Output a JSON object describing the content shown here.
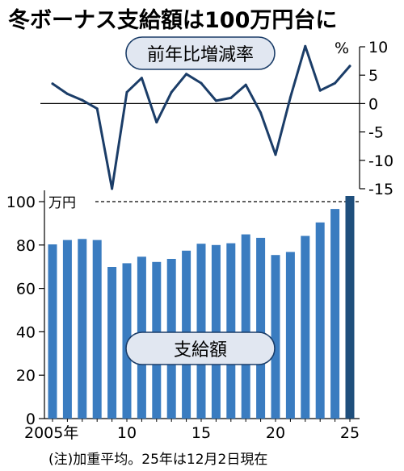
{
  "title": "冬ボーナス支給額は100万円台に",
  "note": "(注)加重平均。25年は12月2日現在",
  "colors": {
    "bar": "#3a7cc0",
    "bar_highlight": "#1f4f7c",
    "line": "#1b3d68",
    "pill": "#e1e7f1",
    "pill_border": "#1b3d68",
    "text": "#000000"
  },
  "chart_data": [
    {
      "type": "line",
      "label": "前年比増減率",
      "unit": "%",
      "x": [
        2005,
        2006,
        2007,
        2008,
        2009,
        2010,
        2011,
        2012,
        2013,
        2014,
        2015,
        2016,
        2017,
        2018,
        2019,
        2020,
        2021,
        2022,
        2023,
        2024,
        2025
      ],
      "values": [
        3.5,
        1.7,
        0.6,
        -0.9,
        -15.0,
        2.0,
        4.5,
        -3.3,
        2.0,
        5.2,
        3.6,
        0.5,
        1.0,
        3.3,
        -1.6,
        -9.0,
        1.1,
        10.1,
        2.3,
        3.6,
        6.6
      ],
      "ylim": [
        -15,
        10
      ],
      "yticks": [
        10,
        5,
        0,
        -5,
        -10,
        -15
      ],
      "zero_line": true
    },
    {
      "type": "bar",
      "label": "支給額",
      "unit": "万円",
      "x": [
        2005,
        2006,
        2007,
        2008,
        2009,
        2010,
        2011,
        2012,
        2013,
        2014,
        2015,
        2016,
        2017,
        2018,
        2019,
        2020,
        2021,
        2022,
        2023,
        2024,
        2025
      ],
      "values": [
        80.3,
        82.3,
        82.8,
        82.3,
        69.9,
        71.6,
        74.6,
        72.2,
        73.6,
        77.4,
        80.6,
        80.0,
        80.8,
        84.9,
        83.3,
        75.4,
        76.8,
        84.2,
        90.4,
        96.6,
        102.6
      ],
      "highlight": [
        2025
      ],
      "ylim": [
        0,
        100
      ],
      "yticks": [
        100,
        80,
        60,
        40,
        20,
        0
      ],
      "xtick_labels": [
        {
          "x": 2005,
          "label": "2005年"
        },
        {
          "x": 2010,
          "label": "10"
        },
        {
          "x": 2015,
          "label": "15"
        },
        {
          "x": 2020,
          "label": "20"
        },
        {
          "x": 2025,
          "label": "25"
        }
      ],
      "reference_line": 100,
      "reference_label": "万円"
    }
  ]
}
